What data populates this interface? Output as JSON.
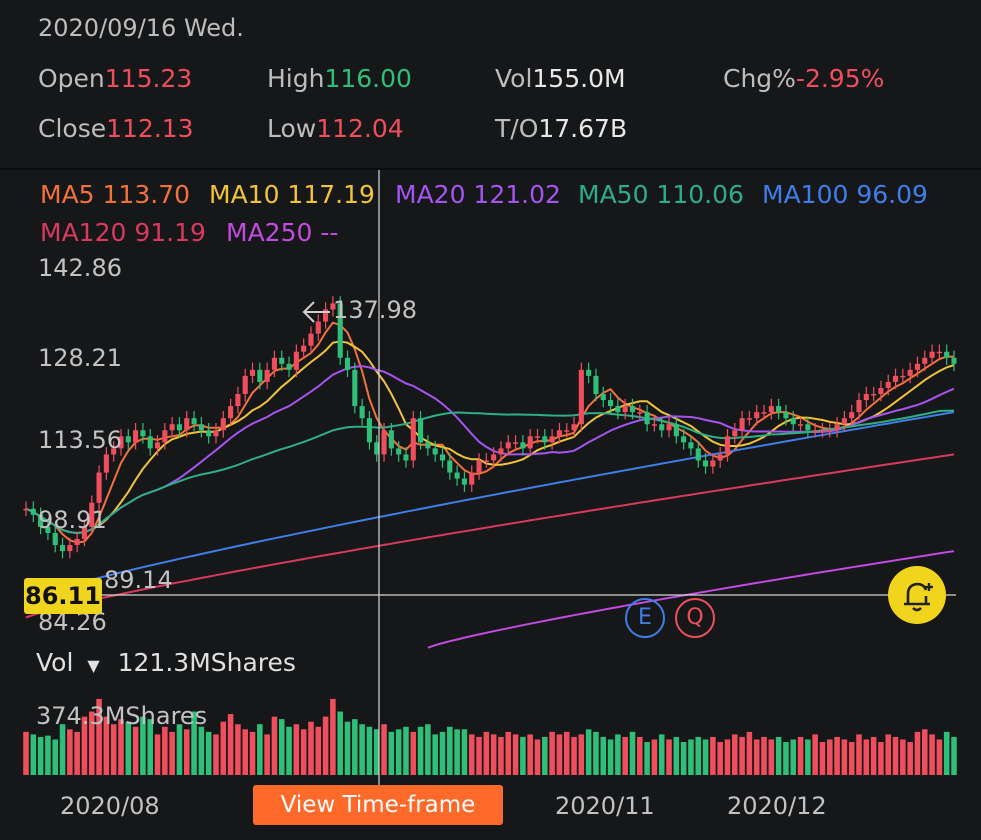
{
  "header": {
    "date": "2020/09/16 Wed.",
    "open_label": "Open",
    "open_value": "115.23",
    "high_label": "High",
    "high_value": "116.00",
    "vol_label": "Vol",
    "vol_value": "155.0M",
    "chg_label": "Chg%",
    "chg_value": "-2.95%",
    "close_label": "Close",
    "close_value": "112.13",
    "low_label": "Low",
    "low_value": "112.04",
    "to_label": "T/O",
    "to_value": "17.67B"
  },
  "ma": {
    "ma5": "MA5 113.70",
    "ma10": "MA10 117.19",
    "ma20": "MA20 121.02",
    "ma50": "MA50 110.06",
    "ma100": "MA100 96.09",
    "ma120": "MA120 91.19",
    "ma250": "MA250 --"
  },
  "colors": {
    "up": "#ef4f5d",
    "down": "#2fbf79",
    "ma5": "#f2723a",
    "ma10": "#f0c43a",
    "ma20": "#a455f0",
    "ma50": "#2eae86",
    "ma100": "#3f7ee8",
    "ma120": "#d73a5e",
    "ma250": "#c24be0"
  },
  "axis": {
    "y_labels": [
      "142.86",
      "128.21",
      "113.56",
      "98.91",
      "89.14",
      "84.26"
    ],
    "crosshair_price": "86.11",
    "peak_label": "137.98",
    "x_labels": [
      "2020/08",
      "2020/11",
      "2020/12"
    ]
  },
  "markers": {
    "e": "E",
    "q": "Q"
  },
  "volume": {
    "label": "Vol",
    "value": "121.3MShares",
    "max_label": "374.3MShares"
  },
  "buttons": {
    "view_timeframe": "View Time-frame"
  },
  "icons": {
    "alert": "bell-plus-icon",
    "dropdown": "caret-down-icon"
  },
  "chart_data": {
    "type": "candlestick",
    "ylim": [
      84.26,
      142.86
    ],
    "close": [
      103,
      102,
      100,
      99,
      97,
      96,
      97,
      98,
      100,
      104,
      109,
      112,
      113,
      115,
      114,
      116,
      115,
      113,
      114,
      116,
      117,
      116,
      118,
      117,
      116,
      115,
      116,
      118,
      120,
      122,
      125,
      126,
      124,
      126,
      128,
      127,
      126,
      129,
      130,
      132,
      134,
      136,
      137,
      128,
      126,
      120,
      118,
      114,
      112,
      116,
      113,
      112,
      111,
      118,
      114,
      113,
      112,
      111,
      109,
      108,
      107,
      109,
      111,
      111,
      112,
      113,
      114,
      114,
      113,
      115,
      115,
      114,
      115,
      116,
      116,
      117,
      126,
      125,
      122,
      121,
      120,
      119,
      120,
      119,
      119,
      117,
      117,
      116,
      117,
      115,
      114,
      113,
      111,
      110,
      111,
      112,
      115,
      116,
      118,
      118,
      119,
      119,
      120,
      119,
      118,
      117,
      117,
      116,
      116,
      116,
      116,
      117,
      118,
      119,
      121,
      122,
      122,
      123,
      124,
      125,
      125,
      126,
      127,
      128,
      129,
      129,
      128,
      127
    ],
    "volume": [
      170,
      160,
      150,
      155,
      140,
      200,
      180,
      170,
      230,
      250,
      300,
      230,
      200,
      220,
      210,
      190,
      230,
      220,
      160,
      190,
      170,
      200,
      180,
      250,
      190,
      170,
      160,
      210,
      240,
      200,
      180,
      170,
      200,
      160,
      230,
      220,
      190,
      200,
      180,
      210,
      190,
      230,
      300,
      250,
      210,
      220,
      200,
      190,
      180,
      200,
      170,
      180,
      190,
      170,
      190,
      200,
      160,
      170,
      190,
      180,
      180,
      160,
      150,
      170,
      160,
      150,
      170,
      160,
      150,
      160,
      140,
      150,
      170,
      160,
      170,
      150,
      160,
      180,
      170,
      150,
      140,
      160,
      150,
      170,
      150,
      130,
      140,
      160,
      140,
      150,
      130,
      140,
      150,
      140,
      150,
      130,
      140,
      160,
      150,
      170,
      140,
      150,
      140,
      150,
      130,
      140,
      150,
      140,
      160,
      130,
      140,
      150,
      140,
      130,
      160,
      140,
      150,
      130,
      160,
      150,
      140,
      130,
      170,
      180,
      160,
      140,
      170,
      150
    ]
  }
}
